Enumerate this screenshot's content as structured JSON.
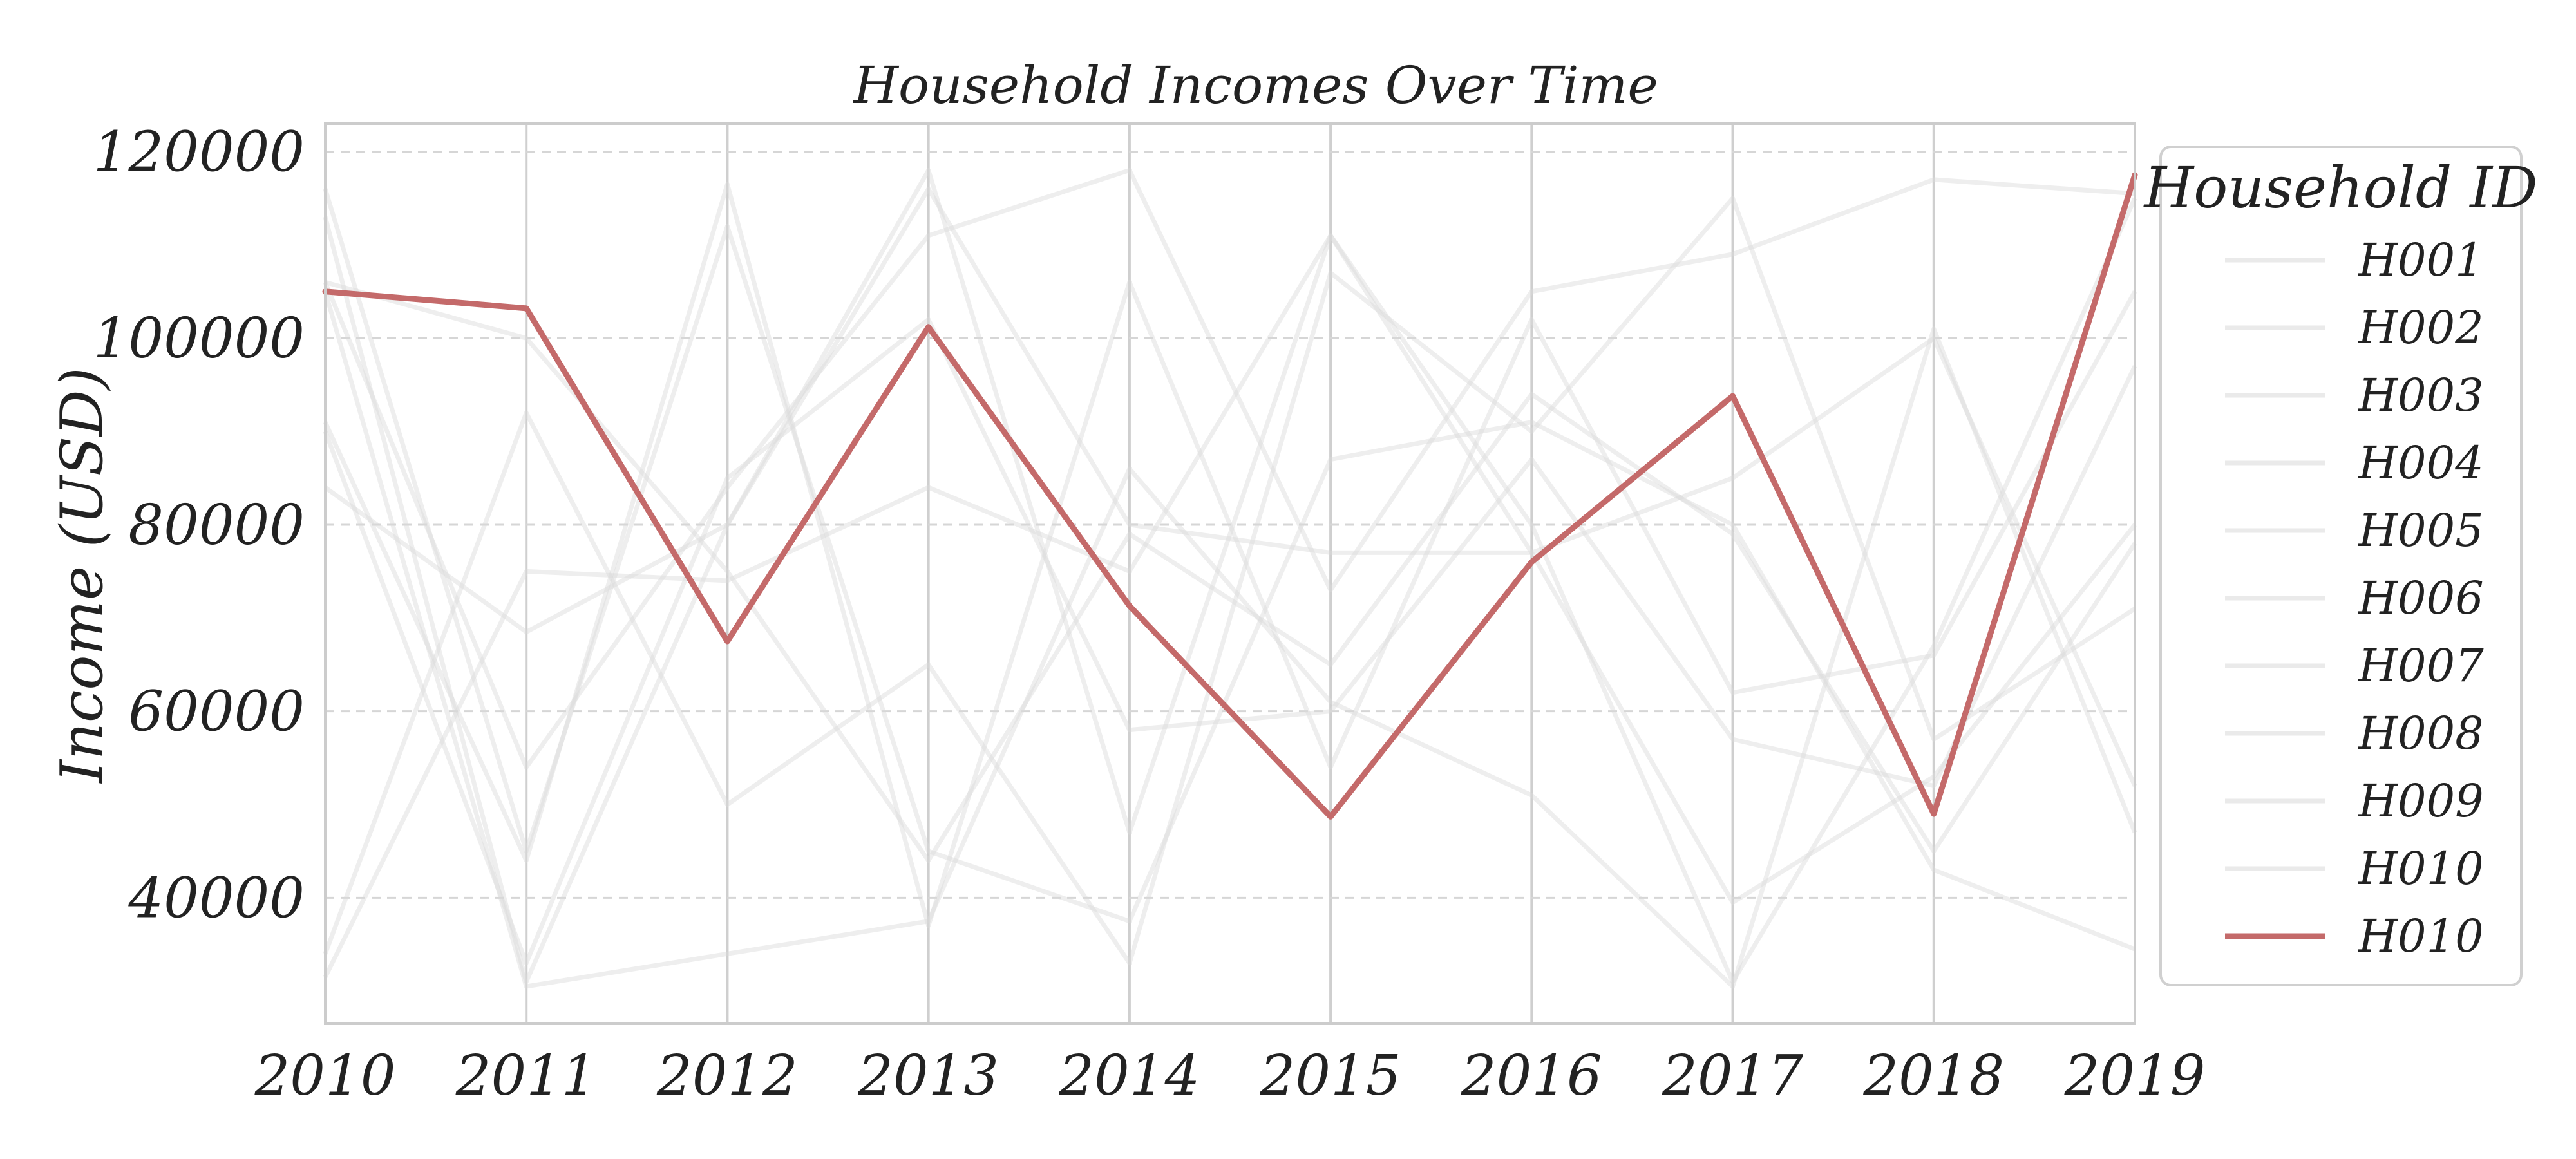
{
  "chart_data": {
    "type": "line",
    "title": "Household Incomes Over Time",
    "xlabel": "",
    "ylabel": "Income (USD)",
    "x": [
      2010,
      2011,
      2012,
      2013,
      2014,
      2015,
      2016,
      2017,
      2018,
      2019
    ],
    "xlim": [
      2010,
      2019
    ],
    "ylim": [
      26500,
      123000
    ],
    "yticks": [
      40000,
      60000,
      80000,
      100000,
      120000
    ],
    "grid": {
      "vertical": true,
      "horizontal": "dashed"
    },
    "legend": {
      "title": "Household ID",
      "placement": "outside-right"
    },
    "series": [
      {
        "name": "H001",
        "style": "background",
        "values": [
          116000,
          45000,
          112000,
          45000,
          37500,
          87000,
          91000,
          80000,
          43000,
          34500
        ]
      },
      {
        "name": "H002",
        "style": "background",
        "values": [
          34000,
          92000,
          50000,
          65000,
          33000,
          107000,
          90000,
          115000,
          57000,
          71000
        ]
      },
      {
        "name": "H003",
        "style": "background",
        "values": [
          84000,
          68500,
          80000,
          118000,
          47000,
          111000,
          80000,
          31000,
          67000,
          115000
        ]
      },
      {
        "name": "H004",
        "style": "background",
        "values": [
          91000,
          44000,
          116500,
          37000,
          106000,
          54000,
          102000,
          62000,
          66000,
          105000
        ]
      },
      {
        "name": "H005",
        "style": "background",
        "values": [
          106000,
          54000,
          84000,
          111000,
          118000,
          73000,
          105000,
          109000,
          117000,
          115500
        ]
      },
      {
        "name": "H006",
        "style": "background",
        "values": [
          31500,
          75000,
          74000,
          84000,
          75000,
          111000,
          77000,
          39500,
          53000,
          80000
        ]
      },
      {
        "name": "H007",
        "style": "background",
        "values": [
          105000,
          30500,
          34000,
          37500,
          86000,
          61000,
          51000,
          30500,
          101000,
          47000
        ]
      },
      {
        "name": "H008",
        "style": "background",
        "values": [
          90000,
          33000,
          85000,
          102000,
          58000,
          60000,
          87000,
          57000,
          52000,
          97000
        ]
      },
      {
        "name": "H009",
        "style": "background",
        "values": [
          113000,
          31000,
          80000,
          116000,
          80000,
          77000,
          77000,
          85000,
          100000,
          52000
        ]
      },
      {
        "name": "H010",
        "style": "background",
        "values": [
          106000,
          100000,
          75000,
          44000,
          79000,
          65000,
          94000,
          79000,
          45000,
          78000
        ]
      },
      {
        "name": "H010",
        "style": "highlight",
        "color": "#c46a6a",
        "values": [
          105000,
          103200,
          67500,
          101200,
          71300,
          48700,
          76000,
          93800,
          49000,
          117500
        ]
      }
    ]
  }
}
